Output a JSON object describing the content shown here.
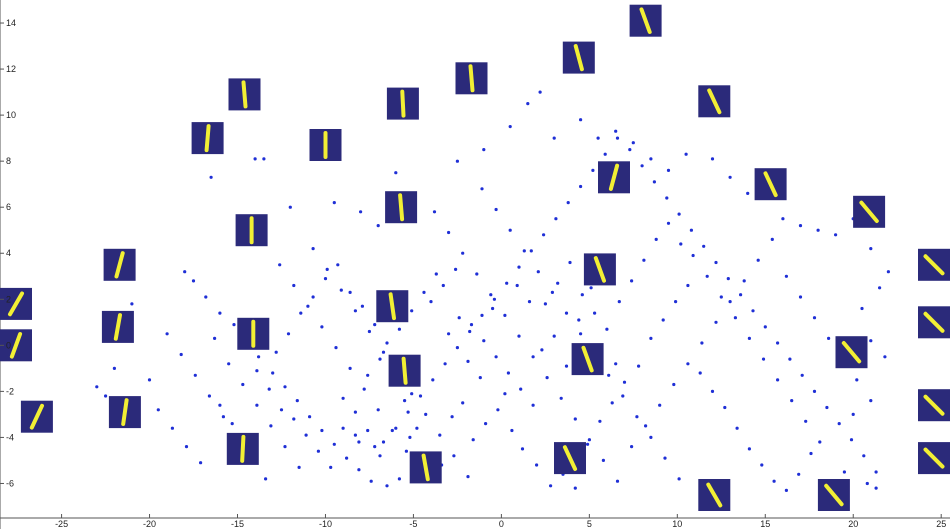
{
  "chart_data": {
    "type": "scatter",
    "title": "",
    "xlabel": "",
    "ylabel": "",
    "xlim": [
      -28.5,
      25.5
    ],
    "ylim": [
      -7.5,
      15
    ],
    "xticks": [
      -25,
      -20,
      -15,
      -10,
      -5,
      0,
      5,
      10,
      15,
      20,
      25
    ],
    "yticks": [
      -6,
      -4,
      -2,
      0,
      2,
      4,
      6,
      8,
      10,
      12,
      14
    ],
    "xtick_labels": [
      "-25",
      "-20",
      "-15",
      "-10",
      "-5",
      "0",
      "5",
      "10",
      "15",
      "20",
      "25"
    ],
    "ytick_labels": [
      "-6",
      "-4",
      "-2",
      "0",
      "2",
      "4",
      "6",
      "8",
      "10",
      "12",
      "14"
    ],
    "grid": false,
    "point_color": "#1f2fd6",
    "thumbnail_background": "#2b2a7a",
    "thumbnail_stroke": "#f2ef34",
    "points": [
      [
        -18,
        3.2
      ],
      [
        -17.5,
        2.8
      ],
      [
        -16.8,
        2.1
      ],
      [
        -16,
        1.4
      ],
      [
        -15.2,
        0.9
      ],
      [
        -14.5,
        0.2
      ],
      [
        -13.8,
        -0.5
      ],
      [
        -13,
        -1.2
      ],
      [
        -12.3,
        -1.8
      ],
      [
        -11.6,
        -2.4
      ],
      [
        -10.9,
        -3.1
      ],
      [
        -10.2,
        -3.7
      ],
      [
        -9.5,
        -4.3
      ],
      [
        -8.8,
        -4.9
      ],
      [
        -8.1,
        -5.4
      ],
      [
        -7.4,
        -5.9
      ],
      [
        -6.7,
        -4.2
      ],
      [
        -6,
        -3.6
      ],
      [
        -5.3,
        -2.9
      ],
      [
        -4.6,
        -2.2
      ],
      [
        -3.9,
        -1.5
      ],
      [
        -3.2,
        -0.8
      ],
      [
        -2.5,
        -0.1
      ],
      [
        -1.8,
        0.6
      ],
      [
        -1.1,
        1.3
      ],
      [
        -0.4,
        2
      ],
      [
        0.3,
        2.7
      ],
      [
        1,
        3.4
      ],
      [
        1.7,
        4.1
      ],
      [
        2.4,
        4.8
      ],
      [
        3.1,
        5.5
      ],
      [
        3.8,
        6.2
      ],
      [
        4.5,
        6.9
      ],
      [
        5.2,
        7.6
      ],
      [
        5.9,
        8.3
      ],
      [
        6.6,
        9
      ],
      [
        7.3,
        8.5
      ],
      [
        8,
        7.8
      ],
      [
        8.7,
        7.1
      ],
      [
        9.4,
        6.4
      ],
      [
        10.1,
        5.7
      ],
      [
        10.8,
        5
      ],
      [
        11.5,
        4.3
      ],
      [
        12.2,
        3.6
      ],
      [
        12.9,
        2.9
      ],
      [
        13.6,
        2.2
      ],
      [
        14.3,
        1.5
      ],
      [
        15,
        0.8
      ],
      [
        15.7,
        0.1
      ],
      [
        16.4,
        -0.6
      ],
      [
        17.1,
        -1.3
      ],
      [
        17.8,
        -2
      ],
      [
        18.5,
        -2.7
      ],
      [
        19.2,
        -3.4
      ],
      [
        19.9,
        -4.1
      ],
      [
        20.6,
        -4.8
      ],
      [
        21.3,
        -5.5
      ],
      [
        -19,
        0.5
      ],
      [
        -18.2,
        -0.4
      ],
      [
        -17.4,
        -1.3
      ],
      [
        -16.6,
        -2.2
      ],
      [
        -15.8,
        -3.1
      ],
      [
        -15,
        -4
      ],
      [
        -14.2,
        -4.9
      ],
      [
        -13.4,
        -5.8
      ],
      [
        -12.6,
        3.5
      ],
      [
        -11.8,
        2.6
      ],
      [
        -11,
        1.7
      ],
      [
        -10.2,
        0.8
      ],
      [
        -9.4,
        -0.1
      ],
      [
        -8.6,
        -1
      ],
      [
        -7.8,
        -1.9
      ],
      [
        -7,
        -2.8
      ],
      [
        -6.2,
        -3.7
      ],
      [
        -5.4,
        -4.6
      ],
      [
        -4.6,
        -5.5
      ],
      [
        -3.8,
        5.8
      ],
      [
        -3,
        4.9
      ],
      [
        -2.2,
        4
      ],
      [
        -1.4,
        3.1
      ],
      [
        -0.6,
        2.2
      ],
      [
        0.2,
        1.3
      ],
      [
        1,
        0.4
      ],
      [
        1.8,
        -0.5
      ],
      [
        2.6,
        -1.4
      ],
      [
        3.4,
        -2.3
      ],
      [
        4.2,
        -3.2
      ],
      [
        5,
        -4.1
      ],
      [
        5.8,
        -5
      ],
      [
        6.6,
        -5.9
      ],
      [
        7.4,
        -4.4
      ],
      [
        8.2,
        -3.5
      ],
      [
        9,
        -2.6
      ],
      [
        9.8,
        -1.7
      ],
      [
        10.6,
        -0.8
      ],
      [
        11.4,
        0.1
      ],
      [
        12.2,
        1
      ],
      [
        13,
        1.9
      ],
      [
        13.8,
        2.8
      ],
      [
        14.6,
        3.7
      ],
      [
        15.4,
        4.6
      ],
      [
        16.2,
        3
      ],
      [
        17,
        2.1
      ],
      [
        17.8,
        1.2
      ],
      [
        18.6,
        0.3
      ],
      [
        19.4,
        -0.6
      ],
      [
        20.2,
        -1.5
      ],
      [
        21,
        -2.4
      ],
      [
        -20,
        -1.5
      ],
      [
        -19.5,
        -2.8
      ],
      [
        -18.7,
        -3.6
      ],
      [
        -17.9,
        -4.4
      ],
      [
        -17.1,
        -5.1
      ],
      [
        -16.3,
        0.3
      ],
      [
        -15.5,
        -0.8
      ],
      [
        -14.7,
        -1.7
      ],
      [
        -13.9,
        -2.6
      ],
      [
        -13.1,
        -3.5
      ],
      [
        -12.3,
        -4.4
      ],
      [
        -11.5,
        -5.3
      ],
      [
        -10.7,
        4.2
      ],
      [
        -9.9,
        3.3
      ],
      [
        -9.1,
        2.4
      ],
      [
        -8.3,
        1.5
      ],
      [
        -7.5,
        0.6
      ],
      [
        -6.7,
        -0.3
      ],
      [
        -5.9,
        -1.2
      ],
      [
        -5.1,
        -2.1
      ],
      [
        -4.3,
        -3
      ],
      [
        -3.5,
        -3.9
      ],
      [
        -2.7,
        -4.8
      ],
      [
        -1.9,
        -5.7
      ],
      [
        -1.1,
        6.8
      ],
      [
        -0.3,
        5.9
      ],
      [
        0.5,
        5
      ],
      [
        1.3,
        4.1
      ],
      [
        2.1,
        3.2
      ],
      [
        2.9,
        2.3
      ],
      [
        3.7,
        1.4
      ],
      [
        4.5,
        0.5
      ],
      [
        5.3,
        -0.4
      ],
      [
        6.1,
        -1.3
      ],
      [
        6.9,
        -2.2
      ],
      [
        7.7,
        -3.1
      ],
      [
        8.5,
        -4
      ],
      [
        9.3,
        -4.9
      ],
      [
        10.1,
        -5.8
      ],
      [
        10.9,
        3.9
      ],
      [
        11.7,
        3
      ],
      [
        12.5,
        2.1
      ],
      [
        13.3,
        1.2
      ],
      [
        14.1,
        0.3
      ],
      [
        14.9,
        -0.6
      ],
      [
        15.7,
        -1.5
      ],
      [
        16.5,
        -2.4
      ],
      [
        17.3,
        -3.3
      ],
      [
        18.1,
        -4.2
      ],
      [
        -21,
        1.8
      ],
      [
        -21.5,
        0.4
      ],
      [
        -22,
        -1
      ],
      [
        -22.5,
        -2.2
      ],
      [
        -23,
        -1.8
      ],
      [
        1.5,
        10.5
      ],
      [
        2.2,
        11
      ],
      [
        0.5,
        9.5
      ],
      [
        -1,
        8.5
      ],
      [
        3,
        9
      ],
      [
        4.5,
        9.8
      ],
      [
        5.5,
        9
      ],
      [
        6.5,
        9.3
      ],
      [
        -2.5,
        8
      ],
      [
        -6,
        7.5
      ],
      [
        -9.5,
        6.2
      ],
      [
        -12,
        6
      ],
      [
        -14,
        8.1
      ],
      [
        -13.5,
        8.1
      ],
      [
        -16.5,
        7.3
      ],
      [
        -15,
        5.5
      ],
      [
        -8,
        5.8
      ],
      [
        -7,
        5.2
      ],
      [
        7.5,
        8.8
      ],
      [
        8.5,
        8.1
      ],
      [
        9.5,
        7.6
      ],
      [
        10.5,
        8.3
      ],
      [
        12,
        8.1
      ],
      [
        13,
        7.3
      ],
      [
        14,
        6.6
      ],
      [
        16,
        5.5
      ],
      [
        17,
        5.2
      ],
      [
        18,
        5
      ],
      [
        19,
        4.8
      ],
      [
        20,
        5.5
      ],
      [
        21,
        4.2
      ],
      [
        22,
        3.2
      ],
      [
        21.5,
        2.5
      ],
      [
        20.5,
        1.6
      ],
      [
        21,
        0.2
      ],
      [
        21.8,
        -0.5
      ],
      [
        20,
        -3
      ],
      [
        19.5,
        -5.5
      ],
      [
        20.8,
        -6
      ],
      [
        21.3,
        -6.2
      ],
      [
        -6.5,
        -6.1
      ],
      [
        -5.8,
        -5.8
      ],
      [
        -7.6,
        -3.7
      ],
      [
        -8.3,
        -3.9
      ],
      [
        -9,
        -3.6
      ],
      [
        -7.2,
        -4.4
      ],
      [
        -6.9,
        -4.8
      ],
      [
        -8.1,
        -4.2
      ],
      [
        -5.2,
        -4
      ],
      [
        -4.8,
        -3.6
      ],
      [
        -4.1,
        -4.8
      ],
      [
        -3.4,
        -5.2
      ],
      [
        -2.8,
        -3.1
      ],
      [
        -2.2,
        -2.5
      ],
      [
        -1.6,
        -4.1
      ],
      [
        -0.9,
        -3.4
      ],
      [
        -0.2,
        -2.8
      ],
      [
        0.6,
        -3.7
      ],
      [
        1.2,
        -4.5
      ],
      [
        2,
        -5.2
      ],
      [
        2.8,
        -6.1
      ],
      [
        3.5,
        -5.6
      ],
      [
        4.2,
        -6.2
      ],
      [
        4.9,
        -4.3
      ],
      [
        5.6,
        -3.3
      ],
      [
        6.3,
        -2.5
      ],
      [
        7,
        -1.6
      ],
      [
        7.8,
        -0.9
      ],
      [
        8.5,
        0.3
      ],
      [
        9.2,
        1.1
      ],
      [
        9.9,
        1.9
      ],
      [
        10.6,
        2.6
      ],
      [
        11.3,
        -1.2
      ],
      [
        12,
        -2
      ],
      [
        12.7,
        -2.7
      ],
      [
        13.4,
        -3.6
      ],
      [
        14.1,
        -4.5
      ],
      [
        14.8,
        -5.2
      ],
      [
        15.5,
        -5.9
      ],
      [
        16.2,
        -6.3
      ],
      [
        16.9,
        -5.6
      ],
      [
        17.6,
        -4.7
      ],
      [
        -3,
        0.5
      ],
      [
        -2.4,
        1.2
      ],
      [
        -1.7,
        0.9
      ],
      [
        -1,
        0.2
      ],
      [
        -0.3,
        -0.5
      ],
      [
        0.4,
        -1.2
      ],
      [
        1.1,
        -1.9
      ],
      [
        1.8,
        -2.6
      ],
      [
        2.5,
        1.8
      ],
      [
        3.2,
        2.7
      ],
      [
        3.9,
        3.6
      ],
      [
        4.6,
        2.2
      ],
      [
        5.3,
        1.4
      ],
      [
        6,
        0.7
      ],
      [
        6.7,
        1.9
      ],
      [
        7.4,
        2.8
      ],
      [
        8.1,
        3.7
      ],
      [
        8.8,
        4.6
      ],
      [
        9.5,
        5.3
      ],
      [
        10.2,
        4.4
      ],
      [
        -4,
        1.9
      ],
      [
        -3.3,
        2.6
      ],
      [
        -2.6,
        3.3
      ],
      [
        -1.9,
        -0.7
      ],
      [
        -1.2,
        -1.4
      ],
      [
        -0.5,
        1.6
      ],
      [
        0.2,
        -2.1
      ],
      [
        0.9,
        2.6
      ],
      [
        1.6,
        1.9
      ],
      [
        2.3,
        -0.2
      ],
      [
        3,
        0.4
      ],
      [
        3.7,
        -0.9
      ],
      [
        4.4,
        1.1
      ],
      [
        5.1,
        2.5
      ],
      [
        5.8,
        3.1
      ],
      [
        6.5,
        -0.8
      ],
      [
        -12.8,
        -0.3
      ],
      [
        -12.1,
        0.5
      ],
      [
        -11.4,
        1.4
      ],
      [
        -10.7,
        2.1
      ],
      [
        -10,
        2.9
      ],
      [
        -9.3,
        3.5
      ],
      [
        -8.6,
        2.3
      ],
      [
        -7.9,
        1.7
      ],
      [
        -7.2,
        0.9
      ],
      [
        -6.5,
        0.1
      ],
      [
        -5.8,
        0.7
      ],
      [
        -5.1,
        1.5
      ],
      [
        -4.4,
        2.3
      ],
      [
        -3.7,
        3.1
      ],
      [
        -16,
        -2.6
      ],
      [
        -15.3,
        -3.4
      ],
      [
        -14.6,
        -4.1
      ],
      [
        -13.9,
        -1.1
      ],
      [
        -13.2,
        -1.9
      ],
      [
        -12.5,
        -2.8
      ],
      [
        -11.8,
        -3.2
      ],
      [
        -11.1,
        -3.9
      ],
      [
        -10.4,
        -4.6
      ],
      [
        -9.7,
        -5.3
      ],
      [
        -9,
        -2.3
      ],
      [
        -8.3,
        -2.9
      ],
      [
        -7.6,
        -1.3
      ],
      [
        -6.9,
        -0.6
      ],
      [
        -6.2,
        -1.5
      ],
      [
        -5.5,
        -2.4
      ]
    ],
    "thumbnails": [
      {
        "x": -27.9,
        "y": 1.8,
        "angle": 30
      },
      {
        "x": -27.6,
        "y": 0.0,
        "angle": 20
      },
      {
        "x": -26.4,
        "y": -3.1,
        "angle": 25
      },
      {
        "x": -21.7,
        "y": 3.5,
        "angle": 15
      },
      {
        "x": -21.8,
        "y": 0.8,
        "angle": 10
      },
      {
        "x": -21.4,
        "y": -2.9,
        "angle": 8
      },
      {
        "x": -16.7,
        "y": 9.0,
        "angle": 5
      },
      {
        "x": -14.6,
        "y": 10.9,
        "angle": -5
      },
      {
        "x": -14.2,
        "y": 5.0,
        "angle": 0
      },
      {
        "x": -14.1,
        "y": 0.5,
        "angle": 0
      },
      {
        "x": -14.7,
        "y": -4.5,
        "angle": 3
      },
      {
        "x": -10.0,
        "y": 8.7,
        "angle": 0
      },
      {
        "x": -5.6,
        "y": 10.5,
        "angle": -3
      },
      {
        "x": -5.7,
        "y": 6.0,
        "angle": -5
      },
      {
        "x": -6.2,
        "y": 1.7,
        "angle": -8
      },
      {
        "x": -5.5,
        "y": -1.1,
        "angle": -5
      },
      {
        "x": -4.3,
        "y": -5.3,
        "angle": -10
      },
      {
        "x": -1.7,
        "y": 11.6,
        "angle": -5
      },
      {
        "x": 4.4,
        "y": 12.5,
        "angle": -15
      },
      {
        "x": 8.2,
        "y": 14.1,
        "angle": -20
      },
      {
        "x": 6.4,
        "y": 7.3,
        "angle": 15
      },
      {
        "x": 5.6,
        "y": 3.3,
        "angle": -20
      },
      {
        "x": 4.9,
        "y": -0.6,
        "angle": -20
      },
      {
        "x": 3.9,
        "y": -4.9,
        "angle": -25
      },
      {
        "x": 12.1,
        "y": 10.6,
        "angle": -25
      },
      {
        "x": 15.3,
        "y": 7.0,
        "angle": -25
      },
      {
        "x": 12.1,
        "y": -6.5,
        "angle": -30
      },
      {
        "x": 20.9,
        "y": 5.8,
        "angle": -40
      },
      {
        "x": 19.9,
        "y": -0.3,
        "angle": -40
      },
      {
        "x": 18.9,
        "y": -6.5,
        "angle": -40
      },
      {
        "x": 25.5,
        "y": 3.5,
        "angle": -45
      },
      {
        "x": 25.5,
        "y": 1.0,
        "angle": -45
      },
      {
        "x": 25.3,
        "y": -2.6,
        "angle": -45
      },
      {
        "x": 25.5,
        "y": -4.9,
        "angle": -45
      }
    ]
  }
}
